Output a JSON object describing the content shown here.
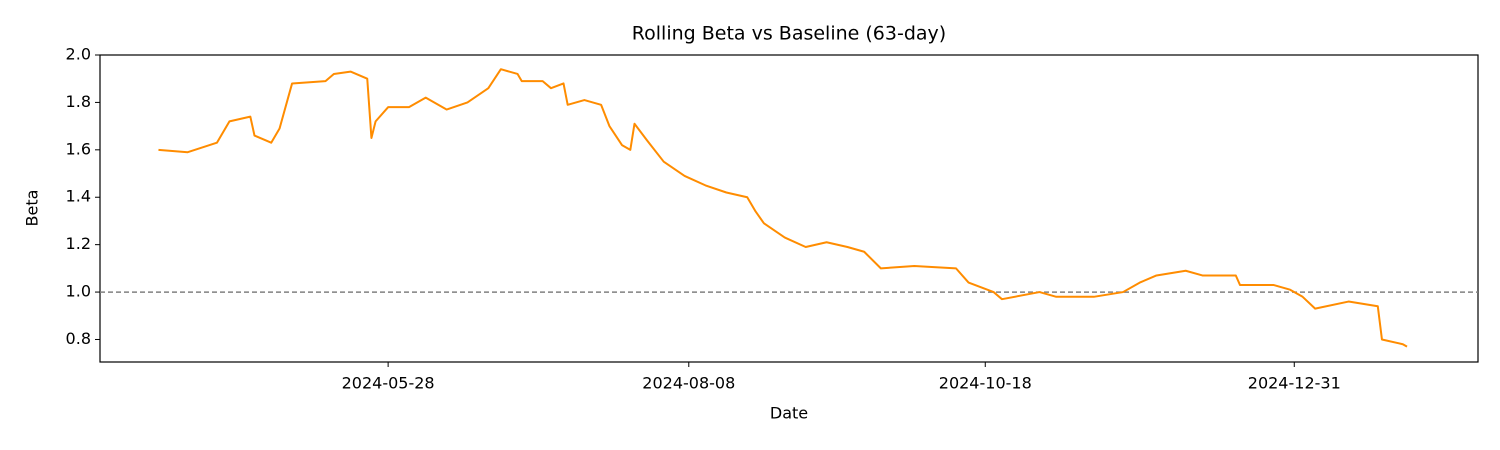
{
  "chart_data": {
    "type": "line",
    "title": "Rolling Beta vs Baseline (63-day)",
    "x_label": "Date",
    "y_label": "Beta",
    "x": [
      "2024-04-03",
      "2024-04-10",
      "2024-04-17",
      "2024-04-20",
      "2024-04-25",
      "2024-04-26",
      "2024-04-30",
      "2024-05-02",
      "2024-05-05",
      "2024-05-13",
      "2024-05-15",
      "2024-05-19",
      "2024-05-23",
      "2024-05-24",
      "2024-05-25",
      "2024-05-28",
      "2024-06-02",
      "2024-06-06",
      "2024-06-11",
      "2024-06-16",
      "2024-06-21",
      "2024-06-24",
      "2024-06-28",
      "2024-06-29",
      "2024-07-04",
      "2024-07-06",
      "2024-07-09",
      "2024-07-10",
      "2024-07-14",
      "2024-07-18",
      "2024-07-20",
      "2024-07-23",
      "2024-07-25",
      "2024-07-26",
      "2024-07-29",
      "2024-08-02",
      "2024-08-07",
      "2024-08-12",
      "2024-08-17",
      "2024-08-22",
      "2024-08-24",
      "2024-08-26",
      "2024-08-31",
      "2024-09-05",
      "2024-09-10",
      "2024-09-15",
      "2024-09-19",
      "2024-09-23",
      "2024-10-01",
      "2024-10-11",
      "2024-10-14",
      "2024-10-20",
      "2024-10-22",
      "2024-10-31",
      "2024-11-04",
      "2024-11-13",
      "2024-11-20",
      "2024-11-24",
      "2024-11-28",
      "2024-12-05",
      "2024-12-09",
      "2024-12-17",
      "2024-12-18",
      "2024-12-26",
      "2024-12-30",
      "2025-01-02",
      "2025-01-05",
      "2025-01-13",
      "2025-01-20",
      "2025-01-21",
      "2025-01-26",
      "2025-01-27"
    ],
    "series": [
      {
        "color": "#ff8c00",
        "values": [
          1.6,
          1.59,
          1.63,
          1.72,
          1.74,
          1.66,
          1.63,
          1.69,
          1.88,
          1.89,
          1.92,
          1.93,
          1.9,
          1.65,
          1.72,
          1.78,
          1.78,
          1.82,
          1.77,
          1.8,
          1.86,
          1.94,
          1.92,
          1.89,
          1.89,
          1.86,
          1.88,
          1.79,
          1.81,
          1.79,
          1.7,
          1.62,
          1.6,
          1.71,
          1.64,
          1.55,
          1.49,
          1.45,
          1.42,
          1.4,
          1.34,
          1.29,
          1.23,
          1.19,
          1.21,
          1.19,
          1.17,
          1.1,
          1.11,
          1.1,
          1.04,
          1.0,
          0.97,
          1.0,
          0.98,
          0.98,
          1.0,
          1.04,
          1.07,
          1.09,
          1.07,
          1.07,
          1.03,
          1.03,
          1.01,
          0.98,
          0.93,
          0.96,
          0.94,
          0.8,
          0.78,
          0.77
        ]
      }
    ],
    "baseline": 1.0,
    "baseline_color": "#808080",
    "xlim": [
      "2024-03-20",
      "2025-02-13"
    ],
    "xticks": [
      "2024-05-28",
      "2024-08-08",
      "2024-10-18",
      "2024-12-31"
    ],
    "ylim": [
      0.705,
      2.0
    ],
    "yticks": [
      {
        "value": 0.8,
        "label": "0.8"
      },
      {
        "value": 1.0,
        "label": "1.0"
      },
      {
        "value": 1.2,
        "label": "1.2"
      },
      {
        "value": 1.4,
        "label": "1.4"
      },
      {
        "value": 1.6,
        "label": "1.6"
      },
      {
        "value": 1.8,
        "label": "1.8"
      },
      {
        "value": 2.0,
        "label": "2.0"
      }
    ]
  }
}
